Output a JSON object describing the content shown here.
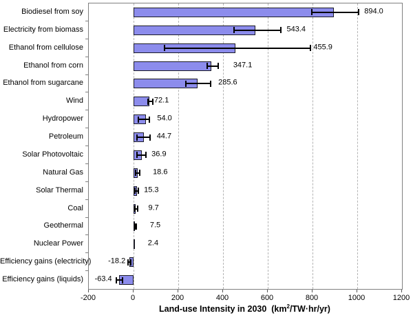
{
  "chart_data": {
    "type": "bar",
    "orientation": "horizontal",
    "title": "",
    "xlabel_parts": {
      "prefix": "Land-use Intensity in 2030  (km",
      "sup": "2",
      "suffix": "/TW·hr/yr)"
    },
    "xlabel_plain": "Land-use Intensity in 2030 (km2/TW·hr/yr)",
    "xlim": [
      -200,
      1200
    ],
    "x_ticks": [
      -200,
      0,
      200,
      400,
      600,
      800,
      1000,
      1200
    ],
    "x_tick_labels": [
      "-200",
      "0",
      "200",
      "400",
      "600",
      "800",
      "1000",
      "1200"
    ],
    "gridlines_at": [
      0,
      200,
      400,
      600,
      800,
      1000
    ],
    "grid_style": "dashed",
    "legend": "none",
    "colors": {
      "bar_fill": "#8c8cec",
      "bar_border": "#1a1a24",
      "gridline": "#b3b3b3",
      "plot_border": "#7f7f7f",
      "error_bar": "#000000",
      "text": "#000000"
    },
    "rows": [
      {
        "label": "Biodiesel from soy",
        "value": 894.0,
        "value_label": "894.0",
        "err_low": 795,
        "err_high": 1010,
        "label_gap": 8
      },
      {
        "label": "Electricity from biomass",
        "value": 543.4,
        "value_label": "543.4",
        "err_low": 445,
        "err_high": 660,
        "label_gap": 9
      },
      {
        "label": "Ethanol from cellulose",
        "value": 455.9,
        "value_label": "455.9",
        "err_low": 135,
        "err_high": 795,
        "label_gap": 4
      },
      {
        "label": "Ethanol from corn",
        "value": 347.1,
        "value_label": "347.1",
        "err_low": 326,
        "err_high": 381,
        "label_gap": 22
      },
      {
        "label": "Ethanol from sugarcane",
        "value": 285.6,
        "value_label": "285.6",
        "err_low": 231,
        "err_high": 348,
        "label_gap": 11
      },
      {
        "label": "Wind",
        "value": 72.1,
        "value_label": "72.1",
        "err_low": 62,
        "err_high": 89,
        "label_gap": 2
      },
      {
        "label": "Hydropower",
        "value": 54.0,
        "value_label": "54.0",
        "err_low": 17,
        "err_high": 75,
        "label_gap": 11
      },
      {
        "label": "Petroleum",
        "value": 44.7,
        "value_label": "44.7",
        "err_low": 12,
        "err_high": 76,
        "label_gap": 10
      },
      {
        "label": "Solar Photovoltaic",
        "value": 36.9,
        "value_label": "36.9",
        "err_low": 12,
        "err_high": 59,
        "label_gap": 8
      },
      {
        "label": "Natural Gas",
        "value": 18.6,
        "value_label": "18.6",
        "err_low": 6,
        "err_high": 31,
        "label_gap": 19
      },
      {
        "label": "Solar Thermal",
        "value": 15.3,
        "value_label": "15.3",
        "err_low": 3,
        "err_high": 25,
        "label_gap": 8
      },
      {
        "label": "Coal",
        "value": 9.7,
        "value_label": "9.7",
        "err_low": 3,
        "err_high": 20,
        "label_gap": 16
      },
      {
        "label": "Geothermal",
        "value": 7.5,
        "value_label": "7.5",
        "err_low": 2,
        "err_high": 15,
        "label_gap": 20
      },
      {
        "label": "Nuclear Power",
        "value": 2.4,
        "value_label": "2.4",
        "err_low": null,
        "err_high": null,
        "label_gap": 21
      },
      {
        "label": "Efficiency gains (electricity)",
        "value": -18.2,
        "value_label": "-18.2",
        "err_low": -27,
        "err_high": -10,
        "label_gap": 2
      },
      {
        "label": "Efficiency gains (liquids)",
        "value": -63.4,
        "value_label": "-63.4",
        "err_low": -81,
        "err_high": -46,
        "label_gap": 4
      }
    ]
  }
}
